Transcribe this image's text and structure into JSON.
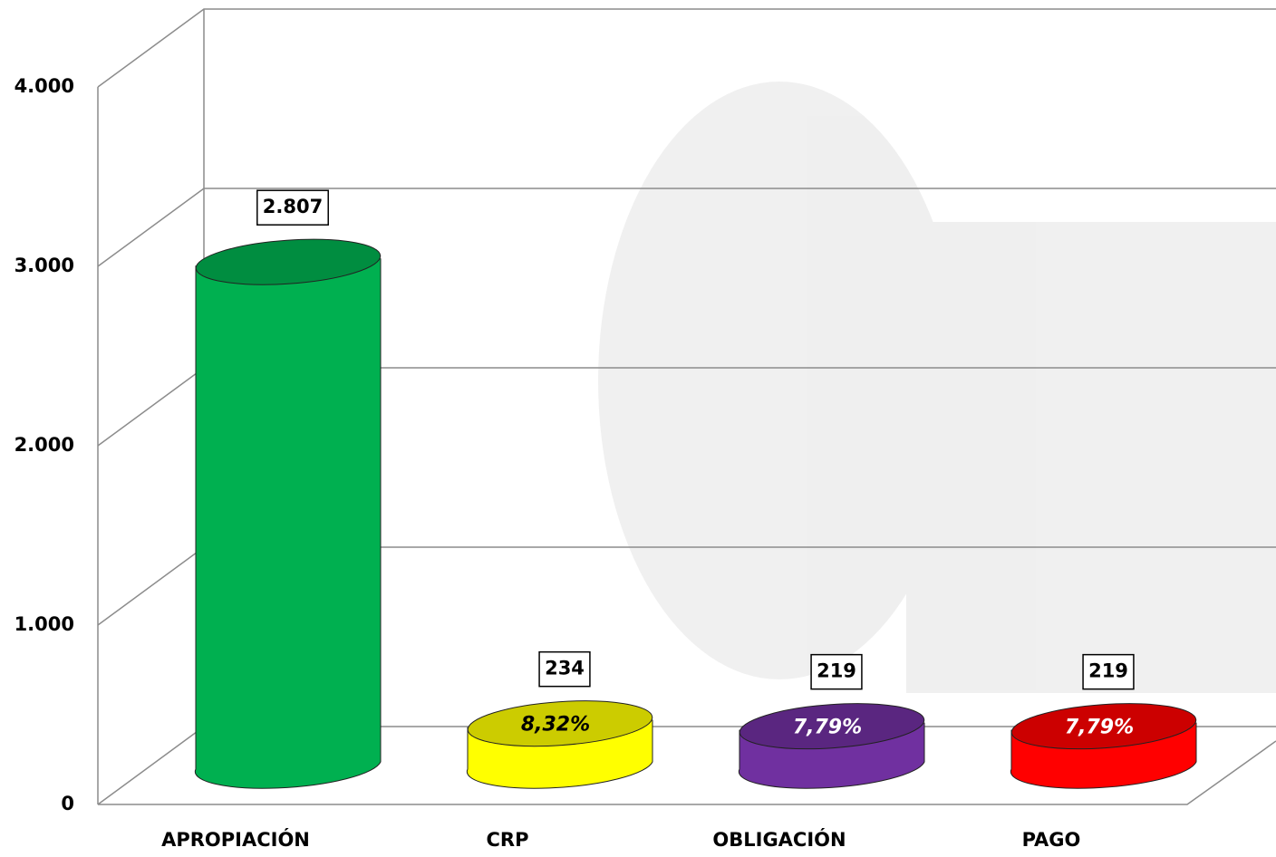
{
  "chart_data": {
    "type": "bar3d",
    "categories": [
      "APROPIACIÓN",
      "CRP",
      "OBLIGACIÓN",
      "PAGO"
    ],
    "values": [
      2807,
      234,
      219,
      219
    ],
    "value_labels": [
      "2.807",
      "234",
      "219",
      "219"
    ],
    "percent_labels": [
      null,
      "8,32%",
      "7,79%",
      "7,79%"
    ],
    "colors": [
      "#00b050",
      "#ffff00",
      "#7030a0",
      "#ff0000"
    ],
    "ylim": [
      0,
      4000
    ],
    "yticks": [
      0,
      {
        "value": 1000,
        "label": "1.000"
      },
      {
        "value": 2000,
        "label": "2.000"
      },
      {
        "value": 3000,
        "label": "3.000"
      },
      {
        "value": 4000,
        "label": "4.000"
      }
    ],
    "grid": true
  }
}
